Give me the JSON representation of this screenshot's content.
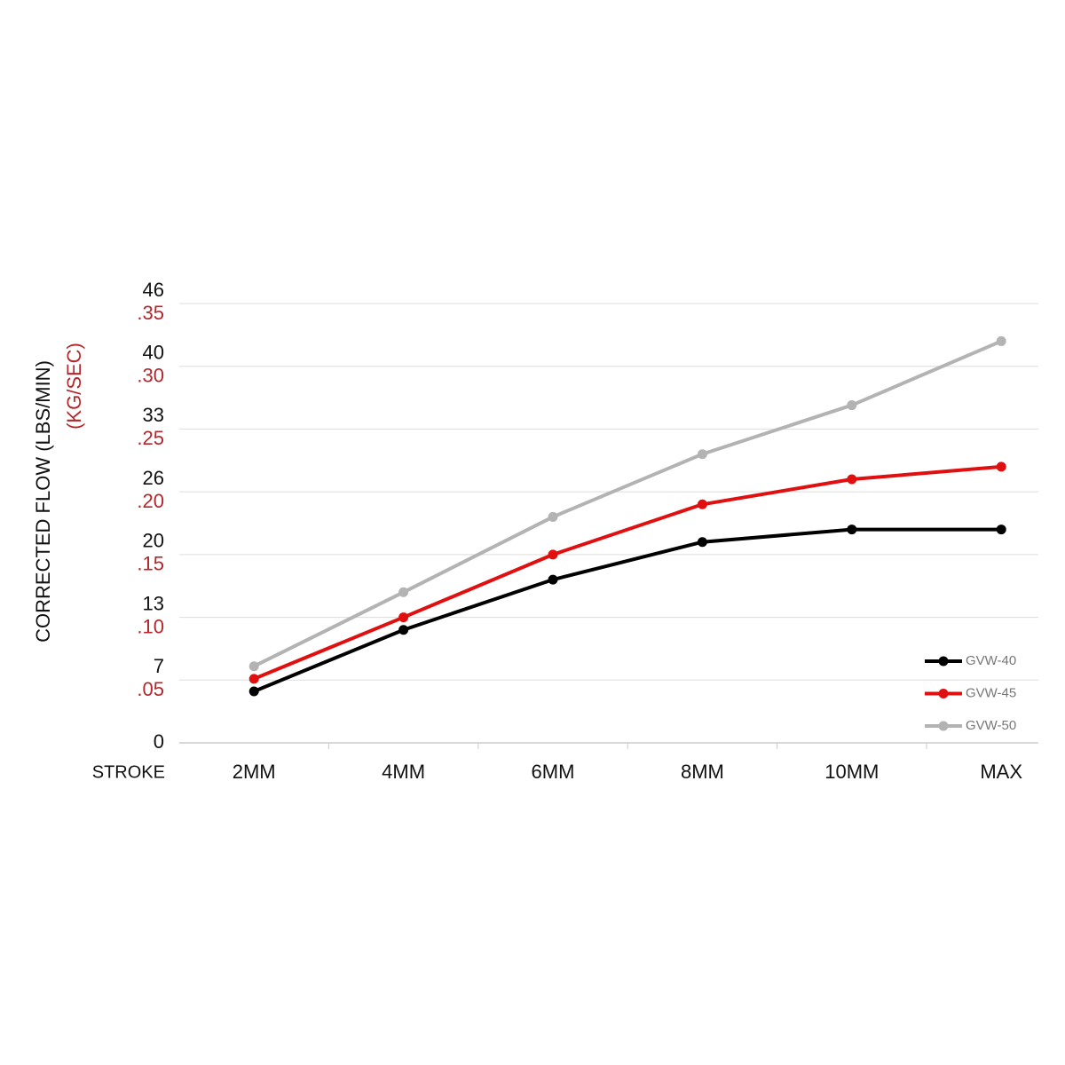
{
  "chart_data": {
    "type": "line",
    "y_label": "CORRECTED FLOW (LBS/MIN)",
    "y_label_secondary": "(KG/SEC)",
    "x_label": "STROKE",
    "categories": [
      "2MM",
      "4MM",
      "6MM",
      "8MM",
      "10MM",
      "MAX"
    ],
    "ylim": [
      0,
      0.35
    ],
    "yticks": [
      0,
      {
        "value": 0.05,
        "label": ".05",
        "label_lbs": "7"
      },
      {
        "value": 0.1,
        "label": ".10",
        "label_lbs": "13"
      },
      {
        "value": 0.15,
        "label": ".15",
        "label_lbs": "20"
      },
      {
        "value": 0.2,
        "label": ".20",
        "label_lbs": "26"
      },
      {
        "value": 0.25,
        "label": ".25",
        "label_lbs": "33"
      },
      {
        "value": 0.3,
        "label": ".30",
        "label_lbs": "40"
      },
      {
        "value": 0.35,
        "label": ".35",
        "label_lbs": "46"
      }
    ],
    "grid": true,
    "legend": "lower right",
    "series": [
      {
        "name": "GVW-40",
        "color": "#000000",
        "values": [
          0.041,
          0.09,
          0.13,
          0.16,
          0.17,
          0.17
        ]
      },
      {
        "name": "GVW-45",
        "color": "#e01010",
        "values": [
          0.051,
          0.1,
          0.15,
          0.19,
          0.21,
          0.22
        ]
      },
      {
        "name": "GVW-50",
        "color": "#b3b3b3",
        "values": [
          0.061,
          0.12,
          0.18,
          0.23,
          0.269,
          0.32
        ]
      }
    ]
  }
}
